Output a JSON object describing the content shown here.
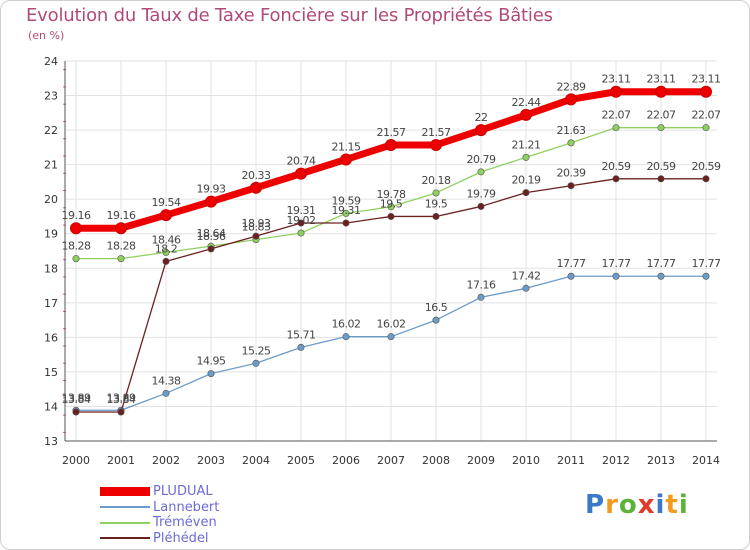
{
  "chart_data": {
    "type": "line",
    "title": "Evolution du Taux de Taxe Foncière sur les Propriétés Bâties",
    "ylabel": "(en %)",
    "xlabel": "",
    "ylim": [
      13,
      24
    ],
    "yticks": [
      "13",
      "14",
      "15",
      "16",
      "17",
      "18",
      "19",
      "20",
      "21",
      "22",
      "23",
      "24"
    ],
    "categories": [
      "2000",
      "2001",
      "2002",
      "2003",
      "2004",
      "2005",
      "2006",
      "2007",
      "2008",
      "2009",
      "2010",
      "2011",
      "2012",
      "2013",
      "2014"
    ],
    "series": [
      {
        "name": "PLUDUAL",
        "color": "#ee0000",
        "values": [
          19.16,
          19.16,
          19.54,
          19.93,
          20.33,
          20.74,
          21.15,
          21.57,
          21.57,
          22,
          22.44,
          22.89,
          23.11,
          23.11,
          23.11
        ],
        "labels": [
          "19.16",
          "19.16",
          "19.54",
          "19.93",
          "20.33",
          "20.74",
          "21.15",
          "21.57",
          "21.57",
          "22",
          "22.44",
          "22.89",
          "23.11",
          "23.11",
          "23.11"
        ]
      },
      {
        "name": "Lannebert",
        "color": "#6b9bc8",
        "values": [
          13.89,
          13.89,
          14.38,
          14.95,
          15.25,
          15.71,
          16.02,
          16.02,
          16.5,
          17.16,
          17.42,
          17.77,
          17.77,
          17.77,
          17.77
        ],
        "labels": [
          "13.89",
          "13.89",
          "14.38",
          "14.95",
          "15.25",
          "15.71",
          "16.02",
          "16.02",
          "16.5",
          "17.16",
          "17.42",
          "17.77",
          "17.77",
          "17.77",
          "17.77"
        ]
      },
      {
        "name": "Tréméven",
        "color": "#8fd060",
        "values": [
          18.28,
          18.28,
          18.46,
          18.64,
          18.83,
          19.02,
          19.59,
          19.78,
          20.18,
          20.79,
          21.21,
          21.63,
          22.07,
          22.07,
          22.07
        ],
        "labels": [
          "18.28",
          "18.28",
          "18.46",
          "18.64",
          "18.83",
          "19.02",
          "19.59",
          "19.78",
          "20.18",
          "20.79",
          "21.21",
          "21.63",
          "22.07",
          "22.07",
          "22.07"
        ]
      },
      {
        "name": "Pléhédel",
        "color": "#6b2020",
        "values": [
          13.84,
          13.84,
          18.2,
          18.56,
          18.93,
          19.31,
          19.31,
          19.5,
          19.5,
          19.79,
          20.19,
          20.39,
          20.59,
          20.59,
          20.59
        ],
        "labels": [
          "13.84",
          "13.84",
          "18.2",
          "18.56",
          "18.93",
          "19.31",
          "19.31",
          "19.5",
          "19.5",
          "19.79",
          "20.19",
          "20.39",
          "20.59",
          "20.59",
          "20.59"
        ]
      }
    ]
  },
  "logo": {
    "letters": [
      "P",
      "r",
      "o",
      "x",
      "i",
      "t",
      "i"
    ],
    "colors": [
      "#3a78c8",
      "#f29b1f",
      "#5cb33a",
      "#e23a2a",
      "#3a78c8",
      "#f29b1f",
      "#5cb33a"
    ]
  }
}
